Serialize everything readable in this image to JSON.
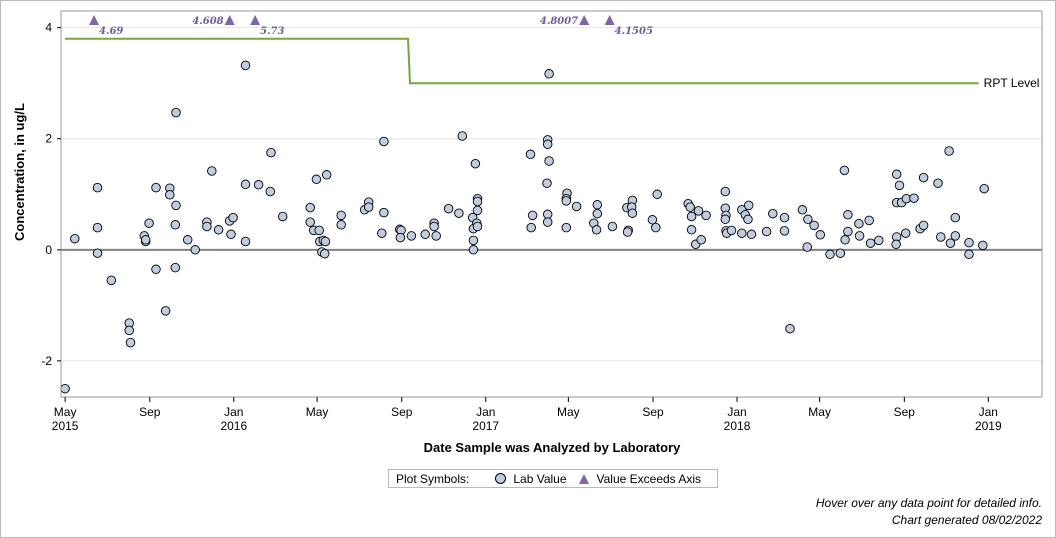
{
  "chart_data": {
    "type": "scatter",
    "xlabel": "Date Sample was Analyzed by Laboratory",
    "ylabel": "Concentration, in ug/L",
    "xlim": [
      "2015-04-25",
      "2019-03-20"
    ],
    "ylim": [
      -2.65,
      4.3
    ],
    "yticks": [
      -2,
      0,
      2,
      4
    ],
    "xticks": [
      {
        "date": "2015-05-01",
        "label": "May",
        "year": "2015"
      },
      {
        "date": "2015-09-01",
        "label": "Sep",
        "year": ""
      },
      {
        "date": "2016-01-01",
        "label": "Jan",
        "year": "2016"
      },
      {
        "date": "2016-05-01",
        "label": "May",
        "year": ""
      },
      {
        "date": "2016-09-01",
        "label": "Sep",
        "year": ""
      },
      {
        "date": "2017-01-01",
        "label": "Jan",
        "year": "2017"
      },
      {
        "date": "2017-05-01",
        "label": "May",
        "year": ""
      },
      {
        "date": "2017-09-01",
        "label": "Sep",
        "year": ""
      },
      {
        "date": "2018-01-01",
        "label": "Jan",
        "year": "2018"
      },
      {
        "date": "2018-05-01",
        "label": "May",
        "year": ""
      },
      {
        "date": "2018-09-01",
        "label": "Sep",
        "year": ""
      },
      {
        "date": "2019-01-01",
        "label": "Jan",
        "year": "2019"
      }
    ],
    "grid": true,
    "rpt_level": {
      "label": "RPT Level",
      "color": "#76a73e",
      "segments": [
        {
          "from": "2015-05-01",
          "to": "2016-09-10",
          "value": 3.8
        },
        {
          "from": "2016-09-13",
          "to": "2018-12-18",
          "value": 3.0
        }
      ]
    },
    "exceeds_axis": [
      {
        "date": "2015-06-12",
        "value": "4.69"
      },
      {
        "date": "2015-12-26",
        "value": "4.608"
      },
      {
        "date": "2016-02-01",
        "value": "5.73"
      },
      {
        "date": "2017-05-24",
        "value": "4.8007"
      },
      {
        "date": "2017-06-30",
        "value": "4.1505"
      }
    ],
    "points": [
      [
        "2015-05-01",
        -2.5
      ],
      [
        "2015-05-15",
        0.2
      ],
      [
        "2015-06-17",
        1.12
      ],
      [
        "2015-06-17",
        0.4
      ],
      [
        "2015-06-17",
        -0.06
      ],
      [
        "2015-07-07",
        -0.55
      ],
      [
        "2015-08-02",
        -1.32
      ],
      [
        "2015-08-02",
        -1.45
      ],
      [
        "2015-08-04",
        -1.67
      ],
      [
        "2015-08-24",
        0.25
      ],
      [
        "2015-08-26",
        0.15
      ],
      [
        "2015-08-26",
        0.18
      ],
      [
        "2015-08-31",
        0.48
      ],
      [
        "2015-09-10",
        1.12
      ],
      [
        "2015-09-10",
        -0.35
      ],
      [
        "2015-09-24",
        -1.1
      ],
      [
        "2015-09-30",
        1.11
      ],
      [
        "2015-09-30",
        0.99
      ],
      [
        "2015-10-09",
        2.47
      ],
      [
        "2015-10-09",
        0.8
      ],
      [
        "2015-10-08",
        0.45
      ],
      [
        "2015-10-08",
        -0.32
      ],
      [
        "2015-10-26",
        0.18
      ],
      [
        "2015-11-06",
        0.0
      ],
      [
        "2015-11-23",
        0.5
      ],
      [
        "2015-11-23",
        0.42
      ],
      [
        "2015-11-30",
        1.42
      ],
      [
        "2015-12-10",
        0.36
      ],
      [
        "2015-12-26",
        0.52
      ],
      [
        "2015-12-31",
        0.58
      ],
      [
        "2015-12-28",
        0.28
      ],
      [
        "2016-01-18",
        3.32
      ],
      [
        "2016-01-18",
        1.18
      ],
      [
        "2016-01-18",
        0.15
      ],
      [
        "2016-02-06",
        1.17
      ],
      [
        "2016-02-24",
        1.75
      ],
      [
        "2016-02-23",
        1.05
      ],
      [
        "2016-03-12",
        0.6
      ],
      [
        "2016-04-21",
        0.76
      ],
      [
        "2016-04-21",
        0.5
      ],
      [
        "2016-04-26",
        0.35
      ],
      [
        "2016-04-30",
        1.27
      ],
      [
        "2016-05-04",
        0.35
      ],
      [
        "2016-05-05",
        0.15
      ],
      [
        "2016-05-08",
        -0.04
      ],
      [
        "2016-05-10",
        0.17
      ],
      [
        "2016-05-13",
        0.15
      ],
      [
        "2016-05-12",
        -0.07
      ],
      [
        "2016-05-15",
        1.35
      ],
      [
        "2016-06-05",
        0.62
      ],
      [
        "2016-06-05",
        0.45
      ],
      [
        "2016-07-09",
        0.72
      ],
      [
        "2016-07-15",
        0.86
      ],
      [
        "2016-07-15",
        0.77
      ],
      [
        "2016-08-06",
        1.95
      ],
      [
        "2016-08-06",
        0.67
      ],
      [
        "2016-08-03",
        0.3
      ],
      [
        "2016-08-29",
        0.37
      ],
      [
        "2016-08-31",
        0.35
      ],
      [
        "2016-08-30",
        0.22
      ],
      [
        "2016-09-15",
        0.25
      ],
      [
        "2016-10-05",
        0.28
      ],
      [
        "2016-10-18",
        0.48
      ],
      [
        "2016-10-18",
        0.42
      ],
      [
        "2016-10-21",
        0.25
      ],
      [
        "2016-11-08",
        0.74
      ],
      [
        "2016-11-23",
        0.66
      ],
      [
        "2016-11-28",
        2.05
      ],
      [
        "2016-12-13",
        0.58
      ],
      [
        "2016-12-14",
        0.38
      ],
      [
        "2016-12-14",
        0.17
      ],
      [
        "2016-12-14",
        0.0
      ],
      [
        "2016-12-17",
        1.55
      ],
      [
        "2016-12-20",
        0.92
      ],
      [
        "2016-12-20",
        0.87
      ],
      [
        "2016-12-20",
        0.71
      ],
      [
        "2016-12-19",
        0.48
      ],
      [
        "2016-12-20",
        0.42
      ],
      [
        "2017-03-07",
        1.72
      ],
      [
        "2017-03-10",
        0.62
      ],
      [
        "2017-03-08",
        0.4
      ],
      [
        "2017-04-01",
        1.98
      ],
      [
        "2017-04-01",
        1.9
      ],
      [
        "2017-04-03",
        1.6
      ],
      [
        "2017-03-31",
        1.2
      ],
      [
        "2017-04-01",
        0.64
      ],
      [
        "2017-04-01",
        0.5
      ],
      [
        "2017-04-03",
        3.17
      ],
      [
        "2017-04-29",
        1.02
      ],
      [
        "2017-04-28",
        0.92
      ],
      [
        "2017-04-28",
        0.88
      ],
      [
        "2017-04-28",
        0.4
      ],
      [
        "2017-05-13",
        0.78
      ],
      [
        "2017-06-07",
        0.48
      ],
      [
        "2017-06-12",
        0.81
      ],
      [
        "2017-06-12",
        0.65
      ],
      [
        "2017-06-11",
        0.36
      ],
      [
        "2017-07-04",
        0.42
      ],
      [
        "2017-07-25",
        0.76
      ],
      [
        "2017-07-27",
        0.35
      ],
      [
        "2017-07-26",
        0.32
      ],
      [
        "2017-08-02",
        0.89
      ],
      [
        "2017-08-01",
        0.77
      ],
      [
        "2017-08-02",
        0.66
      ],
      [
        "2017-09-07",
        1.0
      ],
      [
        "2017-08-31",
        0.54
      ],
      [
        "2017-09-05",
        0.4
      ],
      [
        "2017-10-22",
        0.83
      ],
      [
        "2017-10-25",
        0.77
      ],
      [
        "2017-10-27",
        0.6
      ],
      [
        "2017-10-27",
        0.36
      ],
      [
        "2017-11-06",
        0.7
      ],
      [
        "2017-11-02",
        0.1
      ],
      [
        "2017-11-10",
        0.18
      ],
      [
        "2017-11-17",
        0.62
      ],
      [
        "2017-12-15",
        1.05
      ],
      [
        "2017-12-15",
        0.75
      ],
      [
        "2017-12-16",
        0.62
      ],
      [
        "2017-12-15",
        0.55
      ],
      [
        "2017-12-16",
        0.34
      ],
      [
        "2017-12-17",
        0.3
      ],
      [
        "2017-12-24",
        0.35
      ],
      [
        "2018-01-08",
        0.72
      ],
      [
        "2018-01-08",
        0.3
      ],
      [
        "2018-01-18",
        0.8
      ],
      [
        "2018-01-13",
        0.63
      ],
      [
        "2018-01-17",
        0.55
      ],
      [
        "2018-01-22",
        0.28
      ],
      [
        "2018-02-13",
        0.33
      ],
      [
        "2018-02-22",
        0.65
      ],
      [
        "2018-03-11",
        0.58
      ],
      [
        "2018-03-11",
        0.34
      ],
      [
        "2018-03-19",
        -1.42
      ],
      [
        "2018-04-06",
        0.72
      ],
      [
        "2018-04-14",
        0.55
      ],
      [
        "2018-04-13",
        0.05
      ],
      [
        "2018-04-23",
        0.44
      ],
      [
        "2018-05-02",
        0.27
      ],
      [
        "2018-05-16",
        -0.08
      ],
      [
        "2018-05-31",
        -0.06
      ],
      [
        "2018-06-06",
        1.43
      ],
      [
        "2018-06-07",
        0.18
      ],
      [
        "2018-06-11",
        0.63
      ],
      [
        "2018-06-11",
        0.33
      ],
      [
        "2018-06-27",
        0.47
      ],
      [
        "2018-06-28",
        0.25
      ],
      [
        "2018-07-12",
        0.53
      ],
      [
        "2018-07-14",
        0.12
      ],
      [
        "2018-07-26",
        0.17
      ],
      [
        "2018-08-21",
        1.36
      ],
      [
        "2018-08-25",
        1.16
      ],
      [
        "2018-08-21",
        0.85
      ],
      [
        "2018-08-28",
        0.85
      ],
      [
        "2018-08-21",
        0.23
      ],
      [
        "2018-08-20",
        0.1
      ],
      [
        "2018-09-04",
        0.92
      ],
      [
        "2018-09-03",
        0.3
      ],
      [
        "2018-09-15",
        0.93
      ],
      [
        "2018-09-24",
        0.38
      ],
      [
        "2018-09-29",
        1.3
      ],
      [
        "2018-09-29",
        0.44
      ],
      [
        "2018-10-20",
        1.2
      ],
      [
        "2018-10-24",
        0.23
      ],
      [
        "2018-11-05",
        1.78
      ],
      [
        "2018-11-07",
        0.12
      ],
      [
        "2018-11-14",
        0.58
      ],
      [
        "2018-11-14",
        0.25
      ],
      [
        "2018-12-04",
        0.13
      ],
      [
        "2018-12-04",
        -0.08
      ],
      [
        "2018-12-26",
        1.1
      ],
      [
        "2018-12-24",
        0.08
      ]
    ]
  },
  "legend": {
    "title": "Plot Symbols:",
    "lab_value": "Lab Value",
    "exceeds": "Value Exceeds Axis"
  },
  "footnotes": {
    "hover": "Hover over any data point for detailed info.",
    "generated": "Chart generated 08/02/2022"
  },
  "colors": {
    "point_fill": "#c0cde0",
    "triangle": "#8064a8",
    "exceed_text": "#6e5aa0",
    "zero_line": "#808080",
    "grid": "#e4e4e4"
  }
}
